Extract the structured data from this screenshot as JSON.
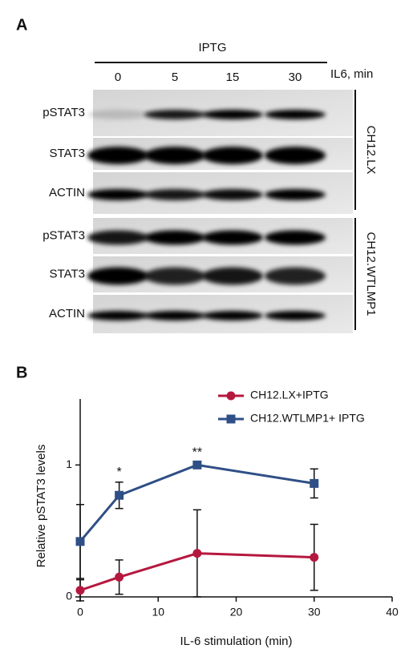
{
  "panel_a": {
    "label": "A",
    "treatment": "IPTG",
    "lanes": [
      "0",
      "5",
      "15",
      "30"
    ],
    "lane_axis_label": "IL6, min",
    "rows": [
      "pSTAT3",
      "STAT3",
      "ACTIN",
      "pSTAT3",
      "STAT3",
      "ACTIN"
    ],
    "groups": [
      "CH12.LX",
      "CH12.WTLMP1"
    ]
  },
  "chart_data": {
    "type": "line",
    "panel_label": "B",
    "x_label": "IL-6 stimulation (min)",
    "y_label": "Relative pSTAT3 levels",
    "x": [
      0,
      5,
      15,
      30
    ],
    "xlim": [
      0,
      40
    ],
    "xticks": [
      0,
      10,
      20,
      30,
      40
    ],
    "ylim": [
      0,
      1.5
    ],
    "yticks": [
      0,
      1
    ],
    "legend": "upper right",
    "series": [
      {
        "name": "CH12.LX+IPTG",
        "color": "#b5183f",
        "marker": "circle",
        "values": [
          0.05,
          0.15,
          0.33,
          0.3
        ],
        "errors": [
          0.08,
          0.13,
          0.33,
          0.25
        ]
      },
      {
        "name": "CH12.WTLMP1+ IPTG",
        "color": "#2f4f86",
        "marker": "square",
        "values": [
          0.42,
          0.77,
          1.0,
          0.86
        ],
        "errors": [
          0.28,
          0.1,
          0.02,
          0.11
        ]
      }
    ],
    "annotations": [
      {
        "x": 5,
        "text": "*"
      },
      {
        "x": 15,
        "text": "**"
      }
    ]
  }
}
